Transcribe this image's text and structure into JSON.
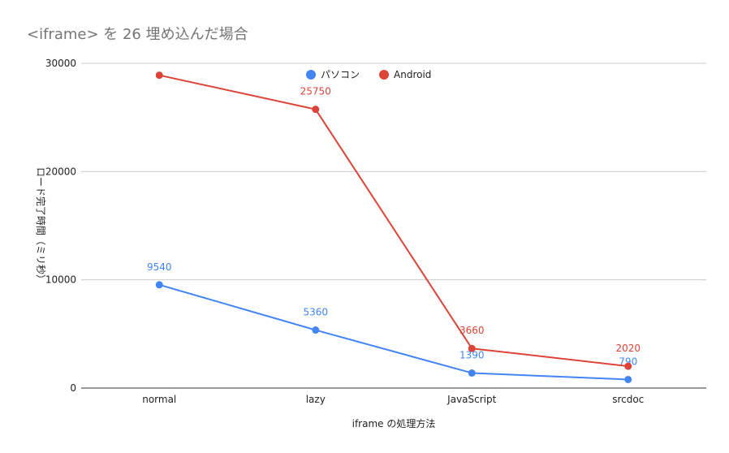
{
  "chart_data": {
    "type": "line",
    "title": "<iframe> を 26 埋め込んだ場合",
    "xlabel": "iframe の処理方法",
    "ylabel": "ロード完了時間（ミリ秒）",
    "categories": [
      "normal",
      "lazy",
      "JavaScript",
      "srcdoc"
    ],
    "ylim": [
      0,
      30000
    ],
    "yticks": [
      0,
      10000,
      20000,
      30000
    ],
    "grid": true,
    "legend_position": "top-center",
    "series": [
      {
        "name": "パソコン",
        "color": "#4285f4",
        "values": [
          9540,
          5360,
          1390,
          790
        ],
        "labels": [
          "9540",
          "5360",
          "1390",
          "790"
        ]
      },
      {
        "name": "Android",
        "color": "#db4437",
        "values": [
          28900,
          25750,
          3660,
          2020
        ],
        "labels": [
          "",
          "25750",
          "3660",
          "2020"
        ]
      }
    ]
  }
}
